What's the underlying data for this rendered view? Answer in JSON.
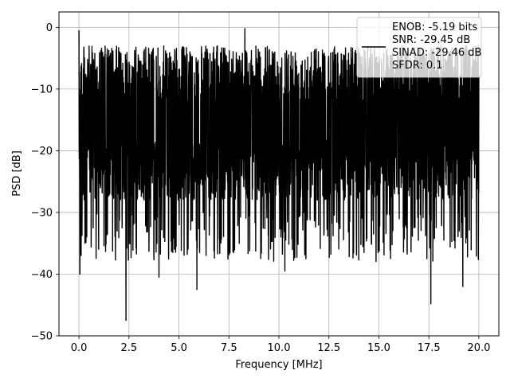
{
  "chart_data": {
    "type": "line",
    "title": "",
    "xlabel": "Frequency [MHz]",
    "ylabel": "PSD [dB]",
    "xlim": [
      -1.0,
      21.0
    ],
    "ylim": [
      -50,
      2.5
    ],
    "x_ticks": [
      0.0,
      2.5,
      5.0,
      7.5,
      10.0,
      12.5,
      15.0,
      17.5,
      20.0
    ],
    "x_tick_labels": [
      "0.0",
      "2.5",
      "5.0",
      "7.5",
      "10.0",
      "12.5",
      "15.0",
      "17.5",
      "20.0"
    ],
    "y_ticks": [
      0,
      -10,
      -20,
      -30,
      -40,
      -50
    ],
    "y_tick_labels": [
      "0",
      "−10",
      "−20",
      "−30",
      "−40",
      "−50"
    ],
    "grid": true,
    "legend_position": "top-right",
    "legend_lines": [
      "ENOB: -5.19 bits",
      "SNR: -29.45 dB",
      "SINAD: -29.46 dB",
      "SFDR: 0.1"
    ],
    "series": [
      {
        "color": "#000000",
        "x_range": [
          0.0,
          20.0
        ],
        "approx_envelope_top_db": -3,
        "approx_envelope_bottom_db": -28,
        "x": [
          0.0,
          0.05,
          0.3,
          2.35,
          4.0,
          5.9,
          8.3,
          10.3,
          17.6,
          19.2
        ],
        "y": [
          -0.5,
          -40,
          -35,
          -47.5,
          -40.5,
          -42.5,
          -0.2,
          -39.5,
          -44.8,
          -42
        ]
      }
    ]
  }
}
